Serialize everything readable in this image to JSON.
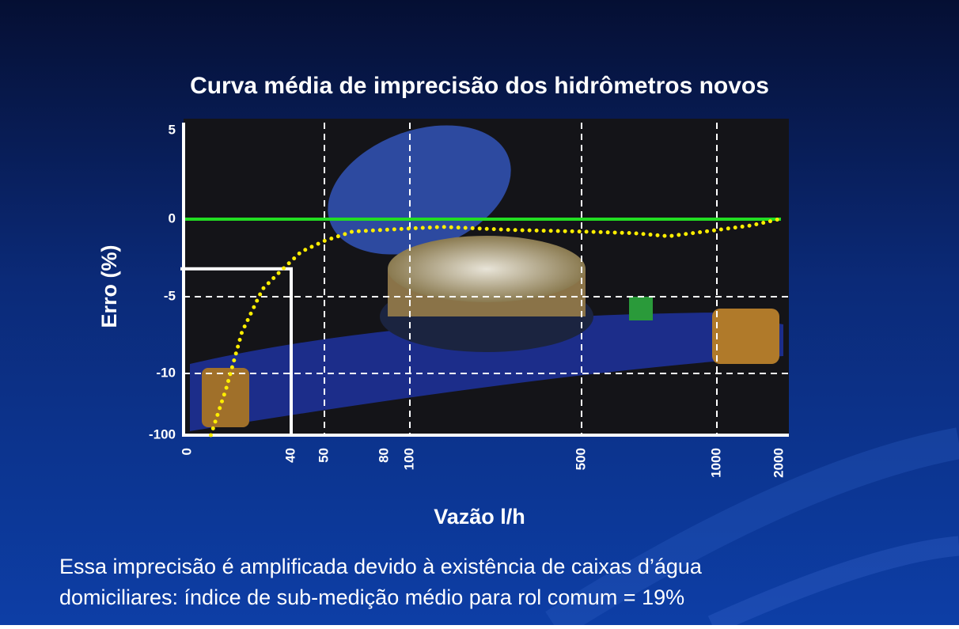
{
  "chart_data": {
    "type": "line",
    "title": "Curva média de imprecisão dos hidrômetros novos",
    "x_label": "Vazão l/h",
    "y_label": "Erro (%)",
    "xticks": [
      0,
      40,
      50,
      80,
      100,
      500,
      1000,
      2000
    ],
    "yticks": [
      5,
      0,
      -5,
      -10,
      -100
    ],
    "xlim": [
      0,
      2000
    ],
    "ylim": [
      -100,
      5
    ],
    "x_grid": [
      50,
      100,
      500,
      1000
    ],
    "y_grid": [
      -5,
      -10
    ],
    "reference_line": {
      "y": 0,
      "color": "#22dd22"
    },
    "highlight_box": {
      "xlim": [
        0,
        40
      ],
      "ytop": -3.2
    },
    "series": [
      {
        "color": "#ffee00",
        "x": [
          9,
          15,
          21,
          29,
          35,
          43,
          50,
          64,
          100,
          177,
          343,
          500,
          690,
          822,
          1000,
          1557,
          2000
        ],
        "values": [
          -100,
          -31,
          -7.3,
          -4.5,
          -3.5,
          -2.1,
          -1.4,
          -0.8,
          -0.6,
          -0.5,
          -0.7,
          -0.8,
          -0.9,
          -1.1,
          -0.7,
          -0.4,
          0
        ]
      }
    ]
  },
  "footer_text": [
    "Essa imprecisão é amplificada devido à existência de caixas d’água",
    "domiciliares: índice de sub-medição médio para rol comum = 19%"
  ]
}
